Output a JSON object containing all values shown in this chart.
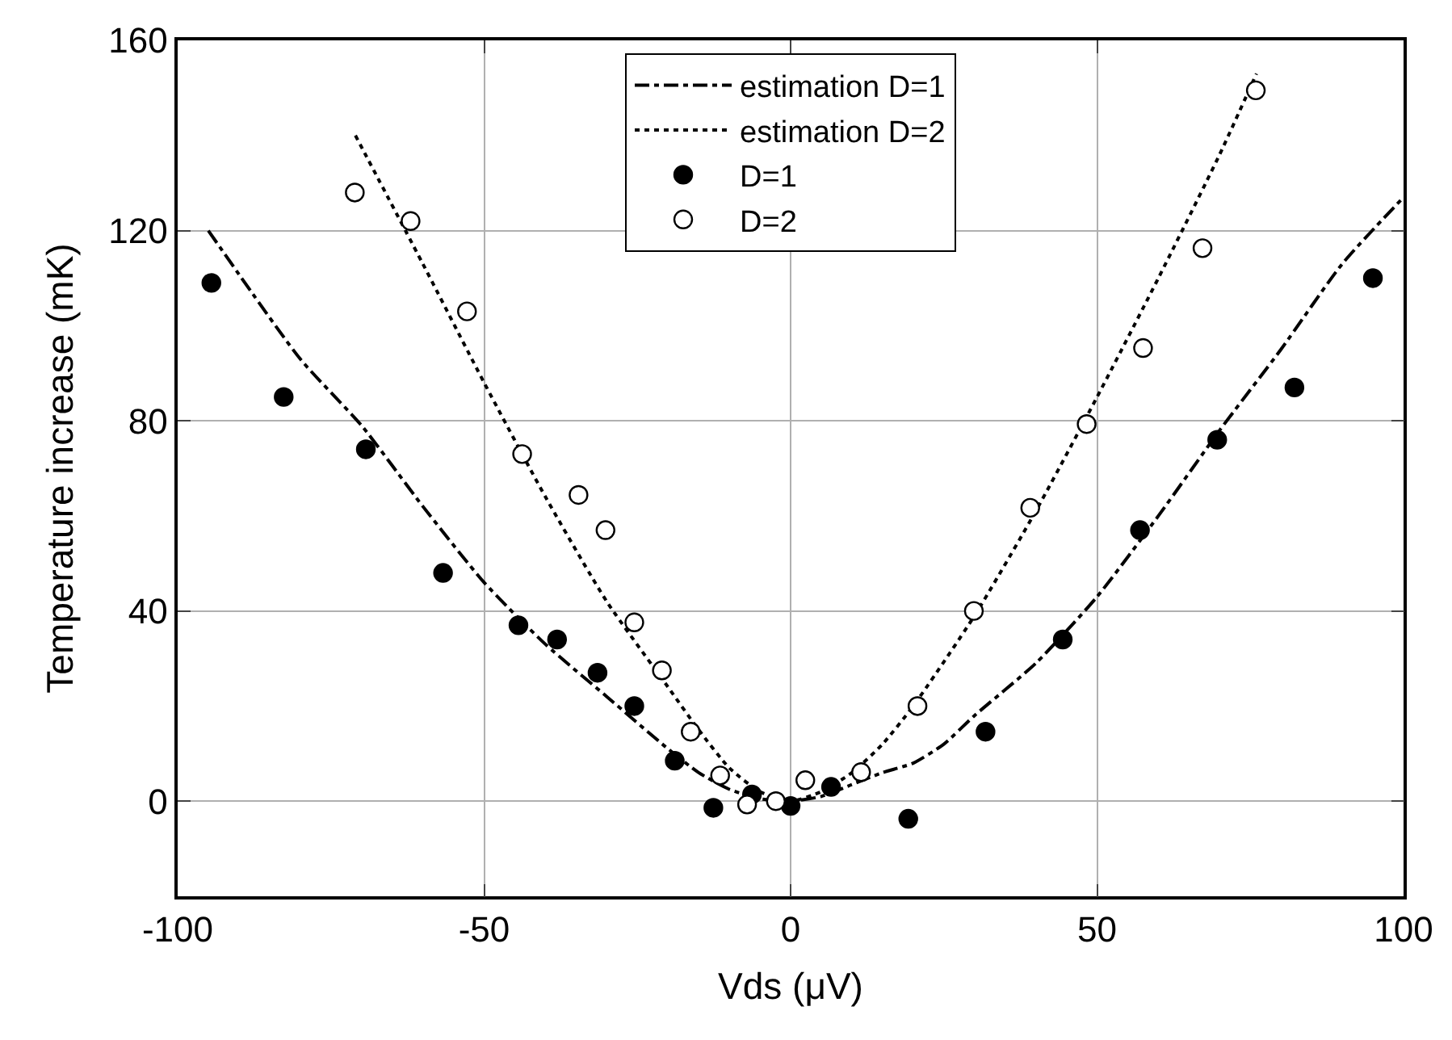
{
  "chart_data": {
    "type": "scatter",
    "xlabel": "Vds (μV)",
    "ylabel": "Temperature increase (mK)",
    "xlim": [
      -100,
      100
    ],
    "xticks": [
      -100,
      -50,
      0,
      50,
      100
    ],
    "ylim": [
      -20,
      160
    ],
    "yticks": [
      0,
      40,
      80,
      120,
      160
    ],
    "grid": true,
    "legend": "top",
    "series": [
      {
        "name": "estimation D=1",
        "type": "line",
        "color": "#000000",
        "line_style": "dashdot",
        "marker": "none",
        "x": [
          -95,
          -80,
          -70,
          -60,
          -50,
          -40,
          -30,
          -20,
          -15,
          -10,
          -5,
          0,
          5,
          10,
          15,
          20,
          25,
          30,
          40,
          50,
          60,
          70,
          80,
          90,
          100
        ],
        "values": [
          120,
          93,
          79,
          62,
          46,
          33,
          22,
          11,
          6,
          2.5,
          0.5,
          0,
          1,
          3.5,
          6,
          8,
          12,
          18,
          29,
          43,
          60,
          78,
          95,
          113,
          127
        ]
      },
      {
        "name": "estimation D=2",
        "type": "line",
        "color": "#000000",
        "line_style": "dotted",
        "marker": "none",
        "x": [
          -71,
          -60,
          -50,
          -40,
          -30,
          -20,
          -15,
          -10,
          -5,
          0,
          5,
          10,
          15,
          20,
          30,
          40,
          50,
          60,
          70,
          76
        ],
        "values": [
          140,
          113,
          88,
          64,
          42,
          24,
          15,
          7,
          2,
          0,
          2,
          6,
          12,
          20,
          39,
          61,
          85,
          110,
          136,
          153
        ]
      },
      {
        "name": "D=1",
        "color": "#000000",
        "marker": "circle",
        "x": [
          -94.5,
          -82.7,
          -69.3,
          -56.7,
          -44.4,
          -38.1,
          -31.5,
          -25.5,
          -18.9,
          -12.6,
          -6.3,
          0,
          6.6,
          19.2,
          31.8,
          44.4,
          57,
          69.6,
          82.2,
          95
        ],
        "values": [
          109,
          85,
          74,
          48,
          37,
          34,
          27,
          20,
          8.5,
          -1.4,
          1.4,
          -1,
          3,
          -3.7,
          14.6,
          34,
          57,
          76,
          87,
          110
        ]
      },
      {
        "name": "D=2",
        "color": "#ffffff",
        "marker": "circle",
        "x": [
          -71.1,
          -62,
          -52.8,
          -43.8,
          -34.6,
          -30.2,
          -25.5,
          -21,
          -16.3,
          -11.5,
          -7.1,
          -2.4,
          2.4,
          11.5,
          20.7,
          29.9,
          39.1,
          48.3,
          57.5,
          67.2,
          75.9
        ],
        "values": [
          128,
          122,
          103,
          73,
          64.4,
          57,
          37.6,
          27.5,
          14.6,
          5.4,
          -0.7,
          0,
          4.4,
          6.1,
          20,
          40,
          61.7,
          79.3,
          95.3,
          116.3,
          149.5
        ]
      }
    ]
  }
}
